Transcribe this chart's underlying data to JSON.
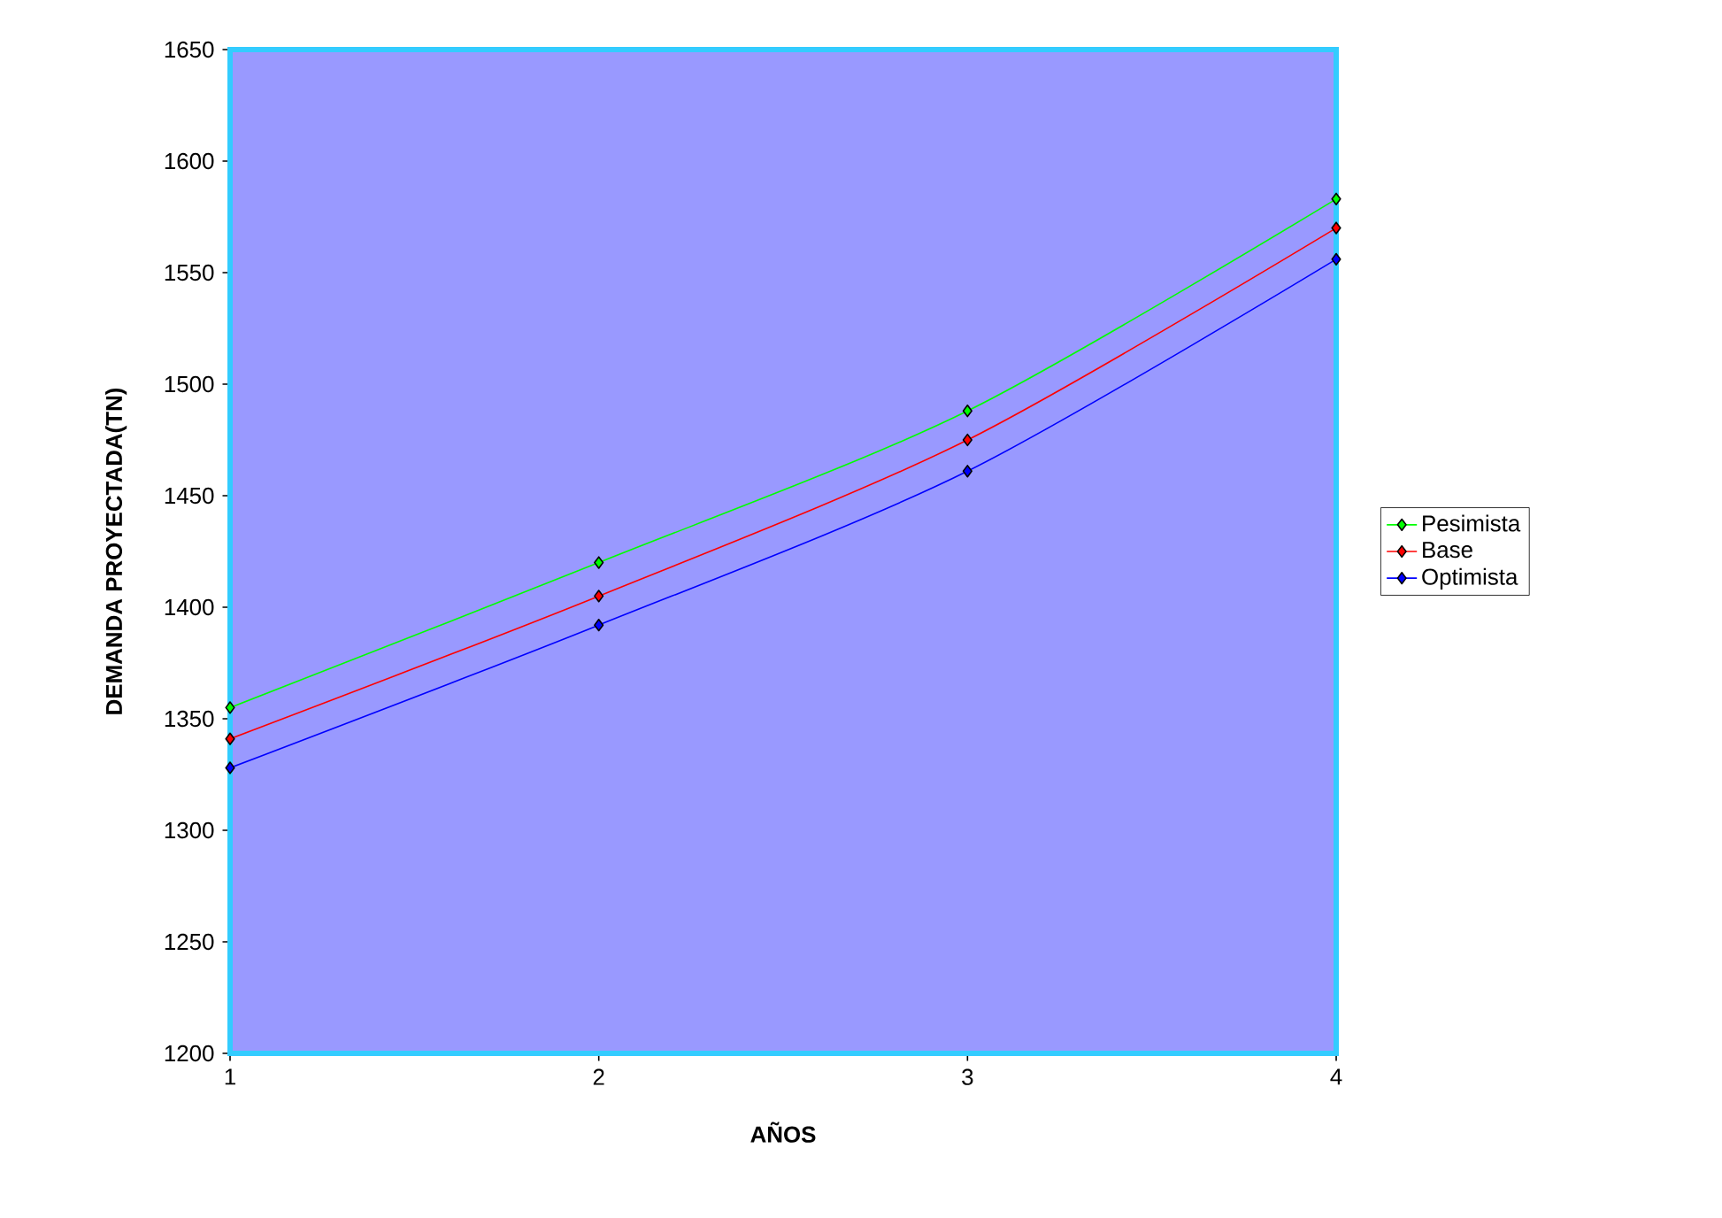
{
  "chart_data": {
    "type": "line",
    "xlabel": "AÑOS",
    "ylabel": "DEMANDA PROYECTADA(TN)",
    "x": [
      1,
      2,
      3,
      4
    ],
    "series": [
      {
        "name": "Pesimista",
        "color": "#00ff00",
        "values": [
          1355,
          1420,
          1488,
          1583
        ]
      },
      {
        "name": "Base",
        "color": "#ff0000",
        "values": [
          1341,
          1405,
          1475,
          1570
        ]
      },
      {
        "name": "Optimista",
        "color": "#0000ff",
        "values": [
          1328,
          1392,
          1461,
          1556
        ]
      }
    ],
    "xlim": [
      1,
      4
    ],
    "xticks": [
      1,
      2,
      3,
      4
    ],
    "ylim": [
      1200,
      1650
    ],
    "yticks": [
      1200,
      1250,
      1300,
      1350,
      1400,
      1450,
      1500,
      1550,
      1600,
      1650
    ],
    "grid": false,
    "legend": "right",
    "marker": "diamond",
    "line_style": "solid"
  }
}
